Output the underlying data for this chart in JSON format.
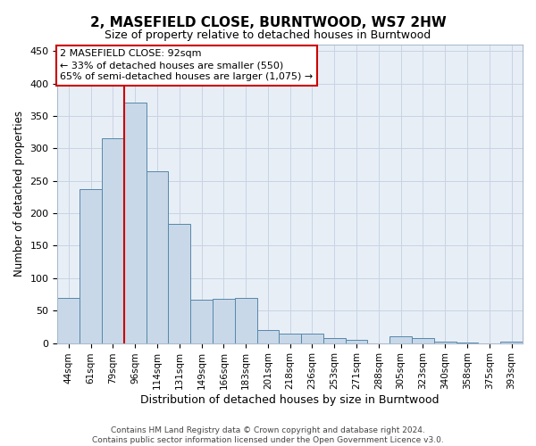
{
  "title": "2, MASEFIELD CLOSE, BURNTWOOD, WS7 2HW",
  "subtitle": "Size of property relative to detached houses in Burntwood",
  "xlabel": "Distribution of detached houses by size in Burntwood",
  "ylabel": "Number of detached properties",
  "categories": [
    "44sqm",
    "61sqm",
    "79sqm",
    "96sqm",
    "114sqm",
    "131sqm",
    "149sqm",
    "166sqm",
    "183sqm",
    "201sqm",
    "218sqm",
    "236sqm",
    "253sqm",
    "271sqm",
    "288sqm",
    "305sqm",
    "323sqm",
    "340sqm",
    "358sqm",
    "375sqm",
    "393sqm"
  ],
  "values": [
    70,
    237,
    315,
    370,
    265,
    183,
    67,
    68,
    70,
    20,
    15,
    15,
    8,
    5,
    0,
    10,
    8,
    2,
    1,
    0,
    2
  ],
  "bar_color": "#c8d8e8",
  "bar_edge_color": "#5588aa",
  "grid_color": "#c8d4e4",
  "background_color": "#e8eef6",
  "vline_x": 2.5,
  "annotation_text": "2 MASEFIELD CLOSE: 92sqm\n← 33% of detached houses are smaller (550)\n65% of semi-detached houses are larger (1,075) →",
  "annotation_box_color": "#ffffff",
  "annotation_box_edge": "#cc0000",
  "vline_color": "#cc0000",
  "footer": "Contains HM Land Registry data © Crown copyright and database right 2024.\nContains public sector information licensed under the Open Government Licence v3.0.",
  "ylim": [
    0,
    460
  ],
  "yticks": [
    0,
    50,
    100,
    150,
    200,
    250,
    300,
    350,
    400,
    450
  ]
}
